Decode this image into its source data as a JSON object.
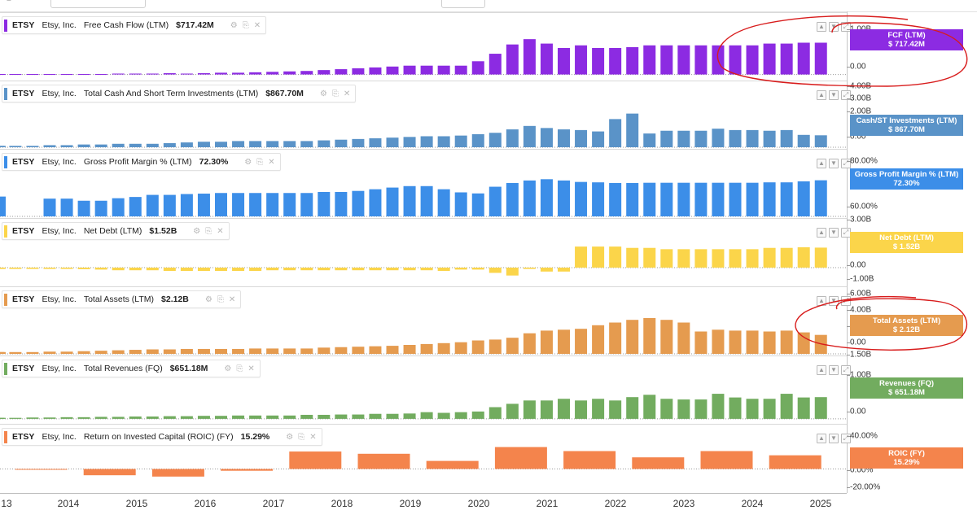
{
  "header": {
    "menu_icon": "hamburger-icon",
    "search_placeholder": "",
    "period_label": "y"
  },
  "panels": [
    {
      "ticker": "ETSY",
      "company": "Etsy, Inc.",
      "metric": "Free Cash Flow (LTM)",
      "value": "$717.42M",
      "color": "#8c2be2",
      "badge_title": "FCF (LTM)",
      "badge_value": "$ 717.42M",
      "ylabels": [
        "1.00B",
        "0.00"
      ],
      "icons": "trash-icon"
    },
    {
      "ticker": "ETSY",
      "company": "Etsy, Inc.",
      "metric": "Total Cash And Short Term Investments (LTM)",
      "value": "$867.70M",
      "color": "#5a93c8",
      "badge_title": "Cash/ST Investments (LTM)",
      "badge_value": "$ 867.70M",
      "ylabels": [
        "4.00B",
        "3.00B",
        "2.00B",
        "0.00"
      ]
    },
    {
      "ticker": "ETSY",
      "company": "Etsy, Inc.",
      "metric": "Gross Profit Margin % (LTM)",
      "value": "72.30%",
      "color": "#3c8ee8",
      "badge_title": "Gross Profit Margin % (LTM)",
      "badge_value": "72.30%",
      "ylabels": [
        "80.00%",
        "60.00%"
      ]
    },
    {
      "ticker": "ETSY",
      "company": "Etsy, Inc.",
      "metric": "Net Debt (LTM)",
      "value": "$1.52B",
      "color": "#fbd54a",
      "badge_title": "Net Debt (LTM)",
      "badge_value": "$ 1.52B",
      "ylabels": [
        "3.00B",
        "0.00",
        "-1.00B"
      ]
    },
    {
      "ticker": "ETSY",
      "company": "Etsy, Inc.",
      "metric": "Total Assets (LTM)",
      "value": "$2.12B",
      "color": "#e59b4f",
      "badge_title": "Total Assets (LTM)",
      "badge_value": "$ 2.12B",
      "ylabels": [
        "6.00B",
        "4.00B",
        "2.00B",
        "0.00"
      ]
    },
    {
      "ticker": "ETSY",
      "company": "Etsy, Inc.",
      "metric": "Total Revenues (FQ)",
      "value": "$651.18M",
      "color": "#72ac5f",
      "badge_title": "Revenues (FQ)",
      "badge_value": "$ 651.18M",
      "ylabels": [
        "1.50B",
        "1.00B",
        "0.00"
      ]
    },
    {
      "ticker": "ETSY",
      "company": "Etsy, Inc.",
      "metric": "Return on Invested Capital (ROIC) (FY)",
      "value": "15.29%",
      "color": "#f4844c",
      "badge_title": "ROIC (FY)",
      "badge_value": "15.29%",
      "ylabels": [
        "40.00%",
        "0.00%",
        "-20.00%"
      ]
    }
  ],
  "x_axis": {
    "labels": [
      "13",
      "2014",
      "2015",
      "2016",
      "2017",
      "2018",
      "2019",
      "2020",
      "2021",
      "2022",
      "2023",
      "2024",
      "2025"
    ]
  },
  "chart_data": [
    {
      "type": "bar",
      "title": "Free Cash Flow (LTM)",
      "x_unit": "quarter index (Q1 2013 = 0)",
      "x": [
        0,
        1,
        2,
        3,
        4,
        5,
        6,
        7,
        8,
        9,
        10,
        11,
        12,
        13,
        14,
        15,
        16,
        17,
        18,
        19,
        20,
        21,
        22,
        23,
        24,
        25,
        26,
        27,
        28,
        29,
        30,
        31,
        32,
        33,
        34,
        35,
        36,
        37,
        38,
        39,
        40,
        41,
        42,
        43,
        44,
        45,
        46,
        47,
        48,
        49
      ],
      "values": [
        0.01,
        0.01,
        0.01,
        0.01,
        0.01,
        0.01,
        0.01,
        0.01,
        0.02,
        0.02,
        0.02,
        0.03,
        0.02,
        0.03,
        0.04,
        0.04,
        0.05,
        0.06,
        0.07,
        0.08,
        0.1,
        0.12,
        0.14,
        0.16,
        0.18,
        0.2,
        0.2,
        0.2,
        0.2,
        0.3,
        0.47,
        0.68,
        0.8,
        0.7,
        0.6,
        0.66,
        0.6,
        0.6,
        0.62,
        0.66,
        0.66,
        0.66,
        0.66,
        0.66,
        0.66,
        0.66,
        0.7,
        0.7,
        0.72,
        0.72
      ],
      "ylim": [
        -0.1,
        1.3
      ]
    },
    {
      "type": "bar",
      "title": "Total Cash And Short Term Investments (LTM)",
      "x_unit": "quarter index (Q1 2013 = 0)",
      "x": [
        0,
        1,
        2,
        3,
        4,
        5,
        6,
        7,
        8,
        9,
        10,
        11,
        12,
        13,
        14,
        15,
        16,
        17,
        18,
        19,
        20,
        21,
        22,
        23,
        24,
        25,
        26,
        27,
        28,
        29,
        30,
        31,
        32,
        33,
        34,
        35,
        36,
        37,
        38,
        39,
        40,
        41,
        42,
        43,
        44,
        45,
        46,
        47,
        48,
        49
      ],
      "values": [
        0.1,
        0.1,
        0.1,
        0.1,
        0.15,
        0.15,
        0.2,
        0.2,
        0.25,
        0.25,
        0.25,
        0.3,
        0.35,
        0.4,
        0.4,
        0.45,
        0.45,
        0.45,
        0.45,
        0.45,
        0.5,
        0.55,
        0.6,
        0.65,
        0.7,
        0.75,
        0.8,
        0.8,
        0.85,
        0.95,
        1.05,
        1.3,
        1.55,
        1.4,
        1.3,
        1.25,
        1.15,
        2.05,
        2.45,
        1.0,
        1.2,
        1.2,
        1.2,
        1.35,
        1.25,
        1.25,
        1.2,
        1.25,
        0.9,
        0.87
      ],
      "ylim": [
        0,
        4.5
      ]
    },
    {
      "type": "bar",
      "title": "Gross Profit Margin % (LTM)",
      "x_unit": "quarter index (Q1 2013 = 0)",
      "x": [
        0,
        4,
        5,
        6,
        7,
        8,
        9,
        10,
        11,
        12,
        13,
        14,
        15,
        16,
        17,
        18,
        19,
        20,
        21,
        22,
        23,
        24,
        25,
        26,
        27,
        28,
        29,
        30,
        31,
        32,
        33,
        34,
        35,
        36,
        37,
        38,
        39,
        40,
        41,
        42,
        43,
        44,
        45,
        46,
        47,
        48,
        49
      ],
      "values": [
        64.5,
        63.5,
        63.5,
        62.5,
        62.5,
        63.7,
        64.3,
        65.3,
        65.3,
        65.7,
        65.9,
        66.2,
        66.2,
        66.2,
        66.2,
        66.2,
        66.2,
        66.7,
        66.7,
        67.2,
        68.0,
        68.8,
        69.5,
        69.5,
        68.0,
        66.5,
        66.0,
        69.2,
        71.0,
        72.2,
        72.8,
        72.2,
        71.5,
        71.3,
        71.0,
        71.0,
        71.1,
        71.1,
        71.1,
        71.1,
        71.1,
        71.1,
        71.1,
        71.3,
        71.3,
        71.8,
        72.3
      ],
      "ylim": [
        55.0,
        85.0
      ]
    },
    {
      "type": "bar",
      "title": "Net Debt (LTM)",
      "x_unit": "quarter index (Q1 2013 = 0)",
      "x": [
        0,
        1,
        2,
        3,
        4,
        5,
        6,
        7,
        8,
        9,
        10,
        11,
        12,
        13,
        14,
        15,
        16,
        17,
        18,
        19,
        20,
        21,
        22,
        23,
        24,
        25,
        26,
        27,
        28,
        29,
        30,
        31,
        32,
        33,
        34,
        35,
        36,
        37,
        38,
        39,
        40,
        41,
        42,
        43,
        44,
        45,
        46,
        47,
        48,
        49
      ],
      "values": [
        -0.1,
        -0.1,
        -0.1,
        -0.1,
        -0.1,
        -0.1,
        -0.12,
        -0.15,
        -0.2,
        -0.2,
        -0.2,
        -0.25,
        -0.25,
        -0.25,
        -0.25,
        -0.25,
        -0.25,
        -0.2,
        -0.2,
        -0.2,
        -0.2,
        -0.2,
        -0.2,
        -0.2,
        -0.2,
        -0.2,
        -0.2,
        -0.25,
        -0.15,
        -0.15,
        -0.4,
        -0.6,
        -0.1,
        -0.3,
        -0.3,
        1.6,
        1.6,
        1.6,
        1.5,
        1.5,
        1.4,
        1.4,
        1.4,
        1.4,
        1.4,
        1.4,
        1.5,
        1.5,
        1.55,
        1.52
      ],
      "ylim": [
        -1.3,
        3.4
      ]
    },
    {
      "type": "bar",
      "title": "Total Assets (LTM)",
      "x_unit": "quarter index (Q1 2013 = 0)",
      "x": [
        0,
        1,
        2,
        3,
        4,
        5,
        6,
        7,
        8,
        9,
        10,
        11,
        12,
        13,
        14,
        15,
        16,
        17,
        18,
        19,
        20,
        21,
        22,
        23,
        24,
        25,
        26,
        27,
        28,
        29,
        30,
        31,
        32,
        33,
        34,
        35,
        36,
        37,
        38,
        39,
        40,
        41,
        42,
        43,
        44,
        45,
        46,
        47,
        48,
        49
      ],
      "values": [
        0.2,
        0.2,
        0.2,
        0.2,
        0.25,
        0.25,
        0.3,
        0.35,
        0.4,
        0.45,
        0.5,
        0.5,
        0.55,
        0.55,
        0.55,
        0.55,
        0.6,
        0.6,
        0.6,
        0.6,
        0.7,
        0.75,
        0.8,
        0.85,
        0.9,
        1.0,
        1.1,
        1.2,
        1.3,
        1.5,
        1.6,
        1.8,
        2.3,
        2.6,
        2.7,
        2.8,
        3.2,
        3.5,
        3.8,
        4.0,
        3.8,
        3.5,
        2.5,
        2.7,
        2.6,
        2.6,
        2.5,
        2.6,
        2.4,
        2.12
      ],
      "ylim": [
        0,
        7.0
      ]
    },
    {
      "type": "bar",
      "title": "Total Revenues (FQ)",
      "x_unit": "quarter index (Q1 2013 = 0)",
      "x": [
        0,
        1,
        2,
        3,
        4,
        5,
        6,
        7,
        8,
        9,
        10,
        11,
        12,
        13,
        14,
        15,
        16,
        17,
        18,
        19,
        20,
        21,
        22,
        23,
        24,
        25,
        26,
        27,
        28,
        29,
        30,
        31,
        32,
        33,
        34,
        35,
        36,
        37,
        38,
        39,
        40,
        41,
        42,
        43,
        44,
        45,
        46,
        47,
        48,
        49
      ],
      "values": [
        0.03,
        0.03,
        0.03,
        0.04,
        0.04,
        0.05,
        0.05,
        0.06,
        0.06,
        0.07,
        0.07,
        0.08,
        0.08,
        0.09,
        0.09,
        0.1,
        0.1,
        0.1,
        0.1,
        0.12,
        0.12,
        0.13,
        0.13,
        0.15,
        0.15,
        0.16,
        0.2,
        0.18,
        0.2,
        0.22,
        0.35,
        0.45,
        0.55,
        0.55,
        0.6,
        0.55,
        0.6,
        0.55,
        0.65,
        0.72,
        0.6,
        0.58,
        0.58,
        0.75,
        0.64,
        0.6,
        0.6,
        0.75,
        0.64,
        0.65
      ],
      "ylim": [
        -0.1,
        1.75
      ]
    },
    {
      "type": "bar",
      "title": "Return on Invested Capital (ROIC) (FY)",
      "x_unit": "fiscal year",
      "x": [
        2014,
        2015,
        2016,
        2017,
        2018,
        2019,
        2020,
        2021,
        2022,
        2023,
        2024,
        2025
      ],
      "values": [
        0.0,
        -7.0,
        -8.5,
        -2.0,
        19.5,
        17.0,
        9.0,
        24.5,
        20.0,
        13.0,
        20.0,
        15.29
      ],
      "ylim": [
        -25.0,
        45.0
      ]
    }
  ],
  "annotations": {
    "type": "hand-drawn red ellipses",
    "count": 2,
    "color": "#d81c1c"
  }
}
